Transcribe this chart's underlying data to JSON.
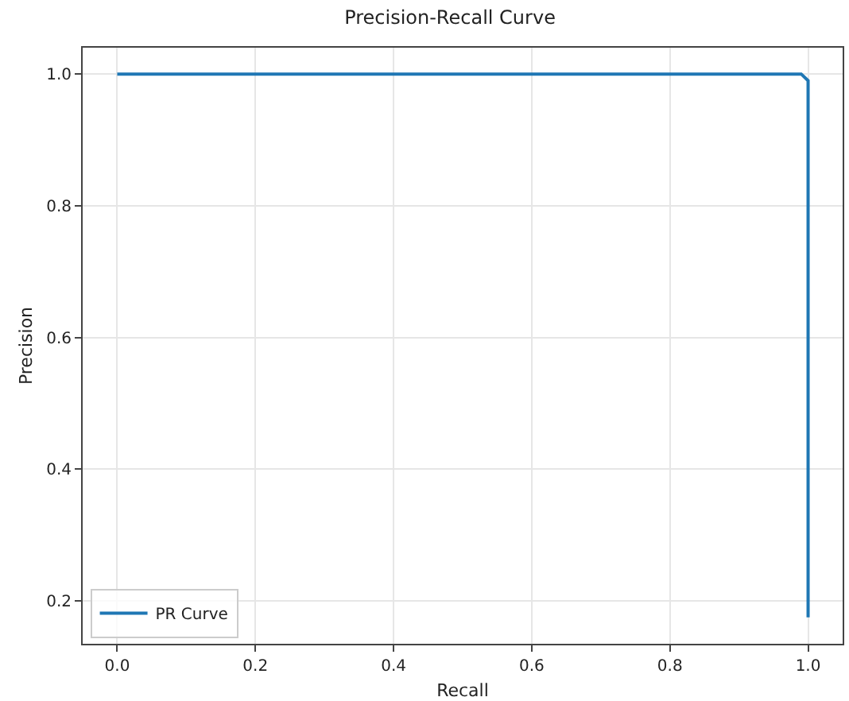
{
  "chart_data": {
    "type": "line",
    "title": "Precision-Recall Curve",
    "xlabel": "Recall",
    "ylabel": "Precision",
    "x": [
      0,
      0.5,
      0.99,
      1.0,
      1.0,
      1.0
    ],
    "series": [
      {
        "name": "PR Curve",
        "color": "#1f77b4",
        "values": [
          1.0,
          1.0,
          1.0,
          0.99,
          0.95,
          0.175
        ]
      }
    ],
    "xlim": [
      -0.05,
      1.05
    ],
    "xticks": [
      {
        "value": 0,
        "label": "0.0"
      },
      0.2,
      0.4,
      0.6,
      0.8,
      {
        "value": 1,
        "label": "1.0"
      }
    ],
    "ylim": [
      0.135,
      1.04
    ],
    "yticks": [
      0.2,
      0.4,
      0.6,
      0.8,
      {
        "value": 1,
        "label": "1.0"
      }
    ],
    "grid": true,
    "legend": "bottom left",
    "line_style": "solid",
    "marker": "none"
  }
}
